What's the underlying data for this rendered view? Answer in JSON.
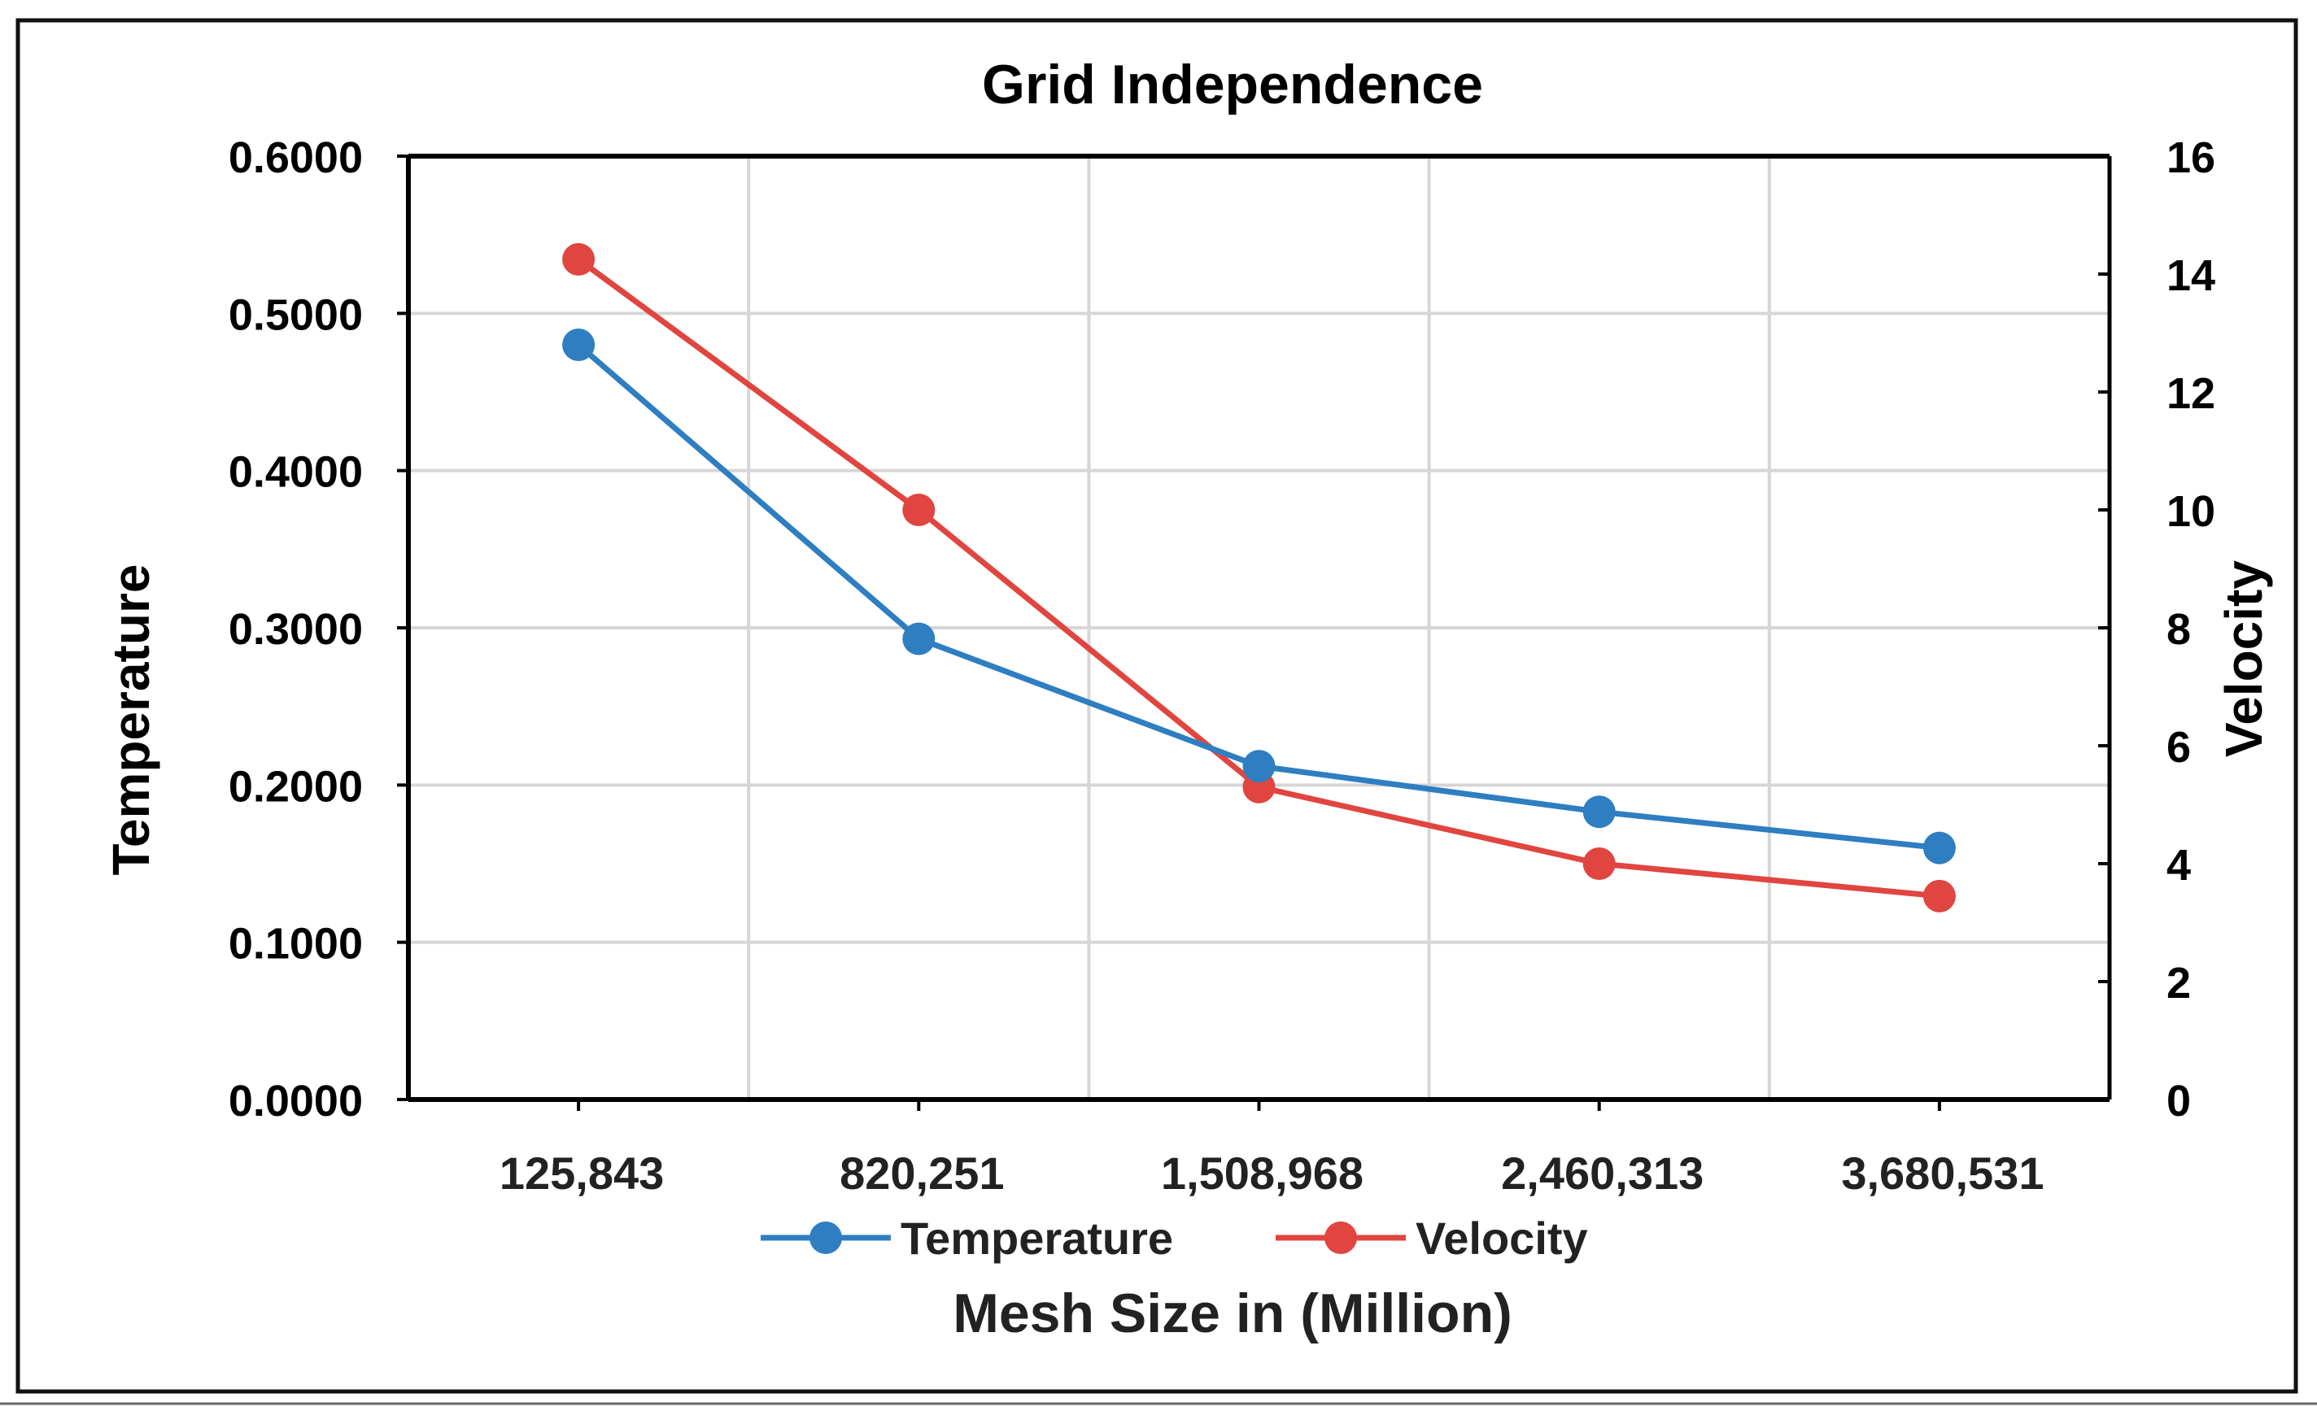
{
  "chart_data": {
    "type": "line",
    "title": "Grid Independence",
    "xlabel": "Mesh Size in (Million)",
    "ylabel": "Temperature",
    "y2label": "Velocity",
    "categories": [
      "125,843",
      "820,251",
      "1,508,968",
      "2,460,313",
      "3,680,531"
    ],
    "ylim": [
      0,
      0.6
    ],
    "y2lim": [
      0,
      16
    ],
    "yticks": [
      0,
      0.1,
      0.2,
      0.3,
      0.4,
      0.5,
      0.6
    ],
    "ytick_labels": [
      "0.0000",
      "0.1000",
      "0.2000",
      "0.3000",
      "0.4000",
      "0.5000",
      "0.6000"
    ],
    "y2ticks": [
      0,
      2,
      4,
      6,
      8,
      10,
      12,
      14,
      16
    ],
    "y2tick_labels": [
      "0",
      "2",
      "4",
      "6",
      "8",
      "10",
      "12",
      "14",
      "16"
    ],
    "grid": true,
    "legend_position": "bottom",
    "series": [
      {
        "name": "Temperature",
        "axis": "left",
        "color": "#2E7EC1",
        "values": [
          0.48,
          0.293,
          0.212,
          0.183,
          0.16
        ]
      },
      {
        "name": "Velocity",
        "axis": "right",
        "color": "#E0453F",
        "values": [
          14.25,
          10.0,
          5.3,
          4.0,
          3.45
        ]
      }
    ]
  }
}
